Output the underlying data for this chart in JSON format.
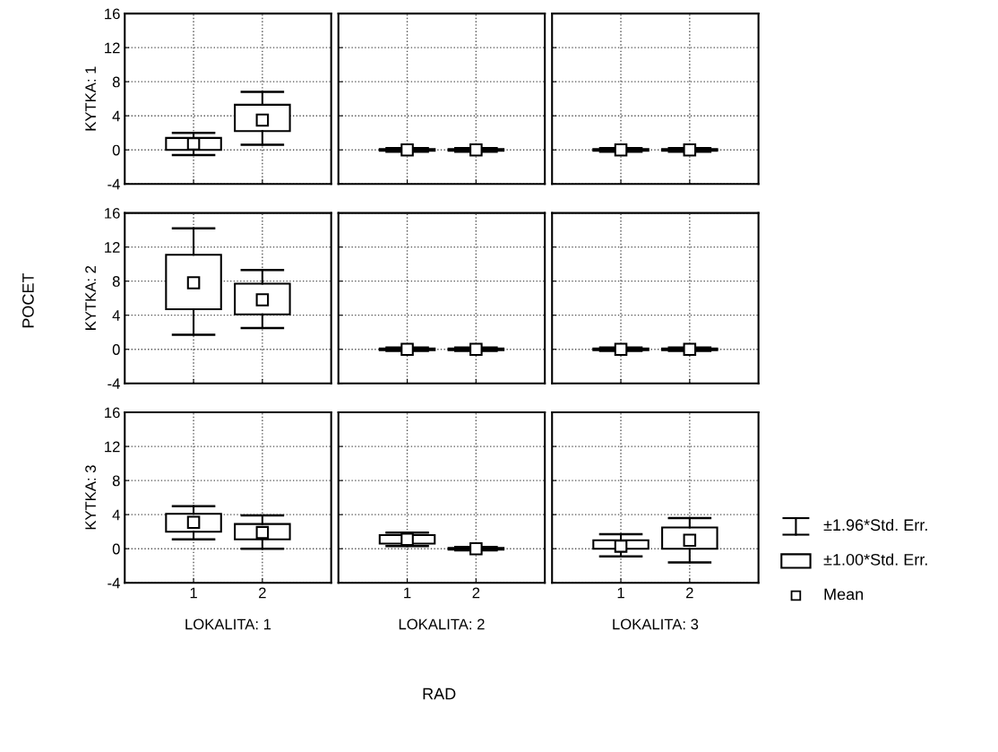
{
  "chart_data": [
    {
      "type": "box",
      "ylabel": "KYTKA: 1",
      "categories": [
        "1",
        "2"
      ],
      "ylim": [
        -4,
        16
      ],
      "yticks": [
        -4,
        0,
        4,
        8,
        12,
        16
      ],
      "grid": true,
      "tick_labels": "y",
      "marker": "square",
      "boxes": [
        {
          "low": -0.6,
          "q1": 0.0,
          "q3": 1.4,
          "high": 2.0,
          "mean": 0.7
        },
        {
          "low": 0.6,
          "q1": 2.2,
          "q3": 5.3,
          "high": 6.8,
          "mean": 3.5
        }
      ]
    },
    {
      "type": "box",
      "categories": [
        "1",
        "2"
      ],
      "ylim": [
        -4,
        16
      ],
      "yticks": [
        -4,
        0,
        4,
        8,
        12,
        16
      ],
      "grid": true,
      "tick_labels": false,
      "marker": "square",
      "boxes": [
        {
          "low": -0.2,
          "q1": -0.1,
          "q3": 0.1,
          "high": 0.2,
          "mean": 0.0
        },
        {
          "low": -0.2,
          "q1": -0.1,
          "q3": 0.1,
          "high": 0.2,
          "mean": 0.0
        }
      ]
    },
    {
      "type": "box",
      "categories": [
        "1",
        "2"
      ],
      "ylim": [
        -4,
        16
      ],
      "yticks": [
        -4,
        0,
        4,
        8,
        12,
        16
      ],
      "grid": true,
      "tick_labels": false,
      "marker": "square",
      "boxes": [
        {
          "low": -0.2,
          "q1": -0.1,
          "q3": 0.1,
          "high": 0.2,
          "mean": 0.0
        },
        {
          "low": -0.2,
          "q1": -0.1,
          "q3": 0.1,
          "high": 0.2,
          "mean": 0.0
        }
      ]
    },
    {
      "type": "box",
      "ylabel": "KYTKA: 2",
      "categories": [
        "1",
        "2"
      ],
      "ylim": [
        -4,
        16
      ],
      "yticks": [
        -4,
        0,
        4,
        8,
        12,
        16
      ],
      "grid": true,
      "tick_labels": "y",
      "marker": "square",
      "boxes": [
        {
          "low": 1.7,
          "q1": 4.7,
          "q3": 11.1,
          "high": 14.2,
          "mean": 7.8
        },
        {
          "low": 2.5,
          "q1": 4.1,
          "q3": 7.7,
          "high": 9.3,
          "mean": 5.8
        }
      ]
    },
    {
      "type": "box",
      "categories": [
        "1",
        "2"
      ],
      "ylim": [
        -4,
        16
      ],
      "yticks": [
        -4,
        0,
        4,
        8,
        12,
        16
      ],
      "grid": true,
      "tick_labels": false,
      "marker": "square",
      "boxes": [
        {
          "low": -0.2,
          "q1": -0.1,
          "q3": 0.1,
          "high": 0.2,
          "mean": 0.0
        },
        {
          "low": -0.2,
          "q1": -0.1,
          "q3": 0.1,
          "high": 0.2,
          "mean": 0.0
        }
      ]
    },
    {
      "type": "box",
      "categories": [
        "1",
        "2"
      ],
      "ylim": [
        -4,
        16
      ],
      "yticks": [
        -4,
        0,
        4,
        8,
        12,
        16
      ],
      "grid": true,
      "tick_labels": false,
      "marker": "square",
      "boxes": [
        {
          "low": -0.2,
          "q1": -0.1,
          "q3": 0.1,
          "high": 0.2,
          "mean": 0.0
        },
        {
          "low": -0.2,
          "q1": -0.1,
          "q3": 0.1,
          "high": 0.2,
          "mean": 0.0
        }
      ]
    },
    {
      "type": "box",
      "ylabel": "KYTKA: 3",
      "xlabel": "LOKALITA: 1",
      "categories": [
        "1",
        "2"
      ],
      "ylim": [
        -4,
        16
      ],
      "yticks": [
        -4,
        0,
        4,
        8,
        12,
        16
      ],
      "grid": true,
      "marker": "square",
      "boxes": [
        {
          "low": 1.1,
          "q1": 2.0,
          "q3": 4.1,
          "high": 5.0,
          "mean": 3.1
        },
        {
          "low": 0.0,
          "q1": 1.1,
          "q3": 2.9,
          "high": 3.9,
          "mean": 1.9
        }
      ]
    },
    {
      "type": "box",
      "xlabel": "LOKALITA: 2",
      "categories": [
        "1",
        "2"
      ],
      "ylim": [
        -4,
        16
      ],
      "yticks": [
        -4,
        0,
        4,
        8,
        12,
        16
      ],
      "grid": true,
      "tick_labels": "x",
      "marker": "square",
      "boxes": [
        {
          "low": 0.3,
          "q1": 0.6,
          "q3": 1.6,
          "high": 1.9,
          "mean": 1.1
        },
        {
          "low": -0.2,
          "q1": -0.1,
          "q3": 0.1,
          "high": 0.2,
          "mean": 0.0
        }
      ]
    },
    {
      "type": "box",
      "xlabel": "LOKALITA: 3",
      "categories": [
        "1",
        "2"
      ],
      "ylim": [
        -4,
        16
      ],
      "yticks": [
        -4,
        0,
        4,
        8,
        12,
        16
      ],
      "grid": true,
      "tick_labels": "x",
      "marker": "square",
      "boxes": [
        {
          "low": -0.9,
          "q1": 0.0,
          "q3": 1.0,
          "high": 1.7,
          "mean": 0.3
        },
        {
          "low": -1.6,
          "q1": 0.0,
          "q3": 2.5,
          "high": 3.6,
          "mean": 1.0
        }
      ]
    },
    {
      "type": "other",
      "xlabel": "RAD",
      "ylabel": "POCET"
    },
    {
      "type": "other",
      "annotations": [
        "±1.96*Std. Err.",
        "±1.00*Std. Err.",
        "Mean"
      ]
    }
  ]
}
